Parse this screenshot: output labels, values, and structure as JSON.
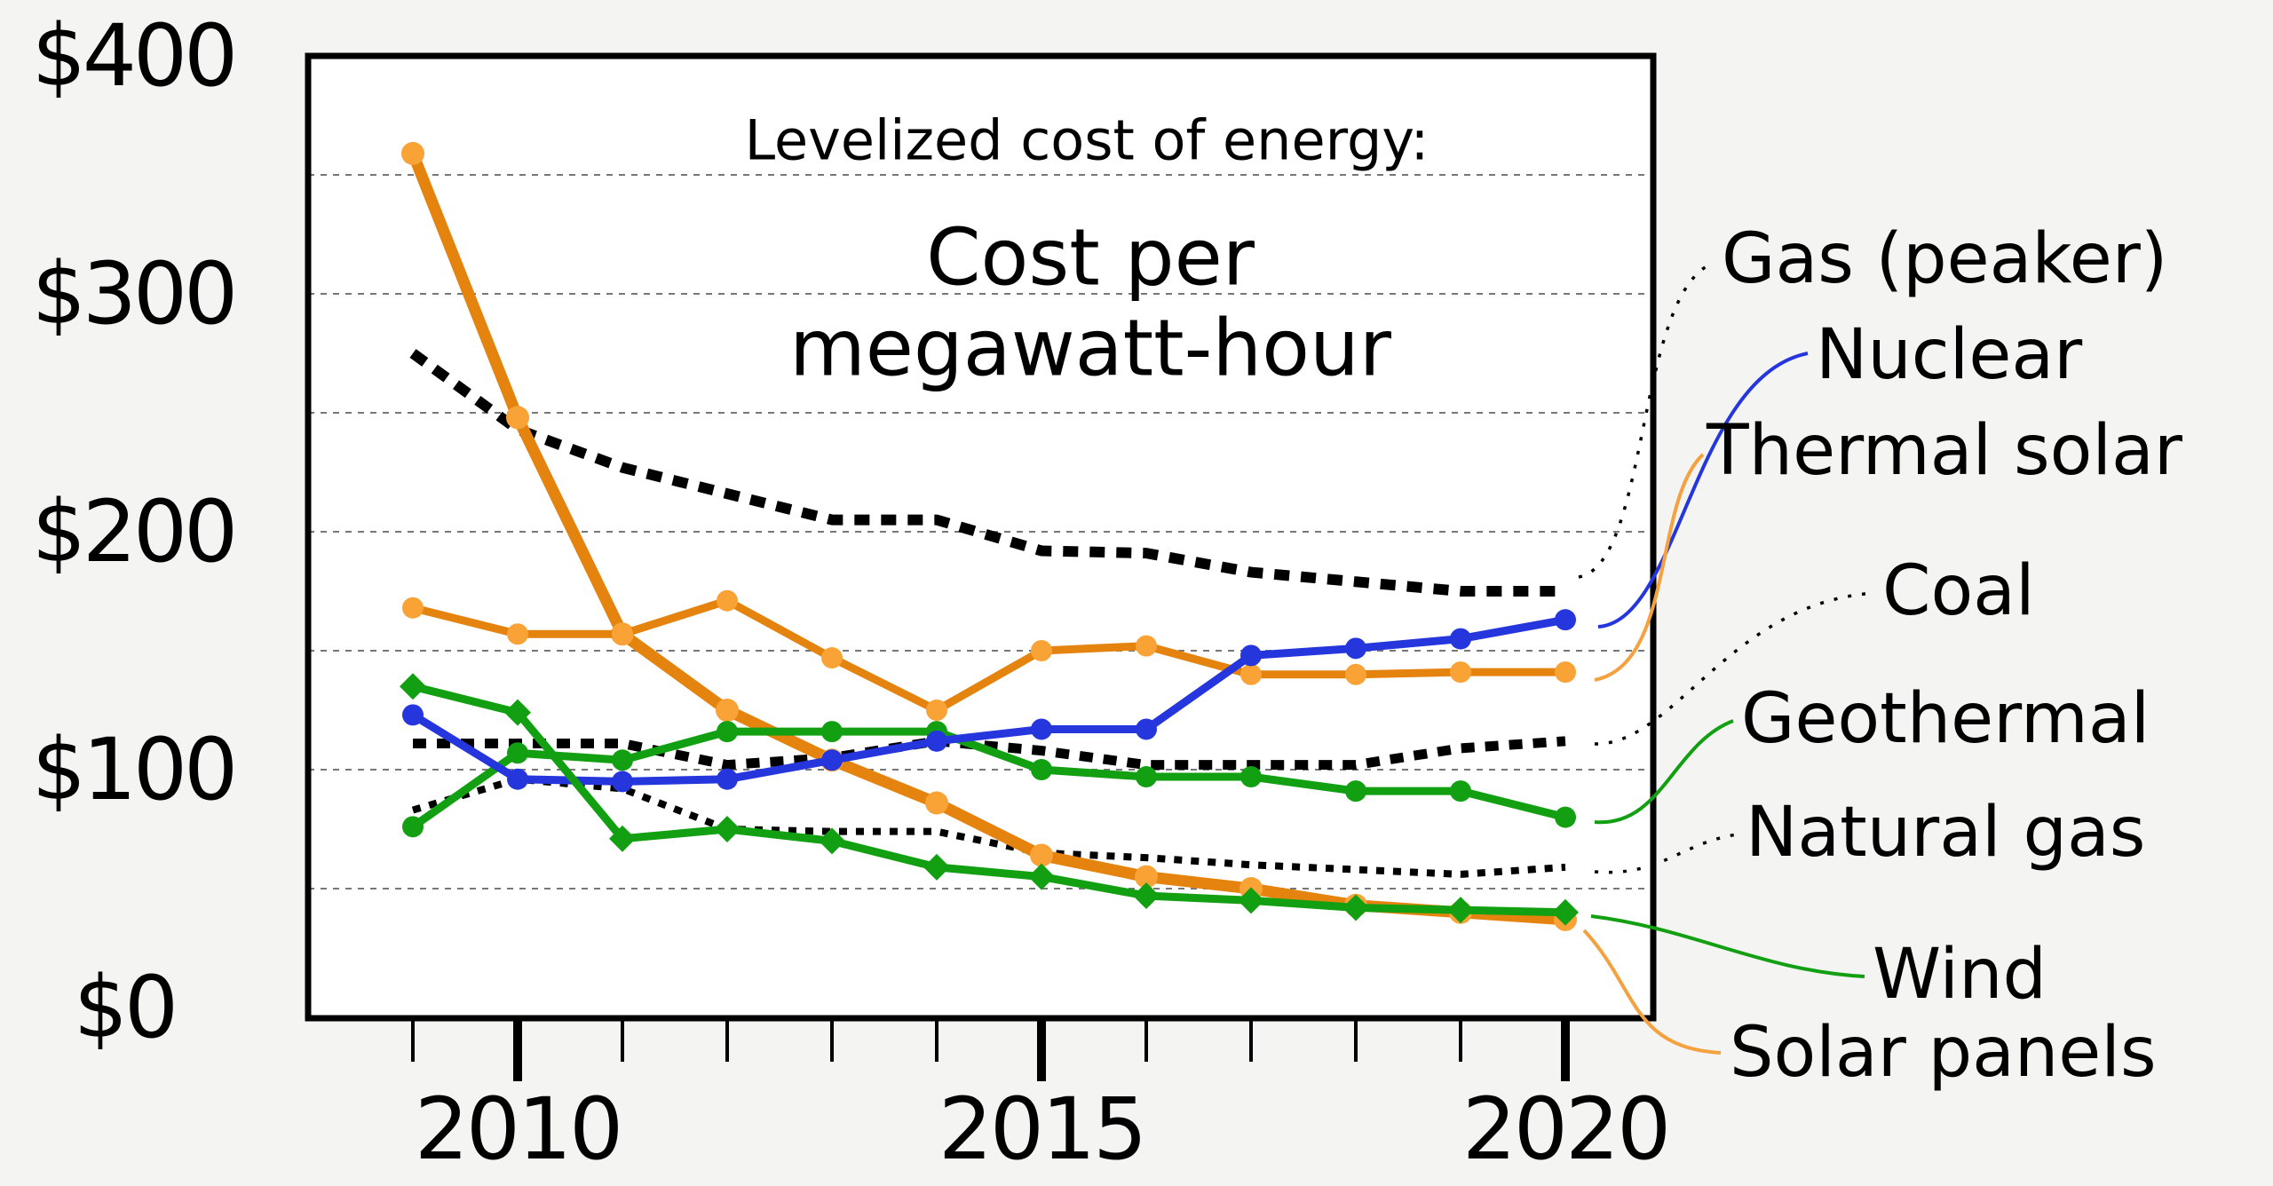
{
  "title": {
    "line1": "Levelized cost of energy:",
    "line2": "Cost per",
    "line3": "megawatt-hour"
  },
  "axes": {
    "y_tick_labels": [
      "$400",
      "$300",
      "$200",
      "$100",
      "$0"
    ],
    "y_tick_values": [
      400,
      300,
      200,
      100,
      0
    ],
    "x_tick_labels": [
      "2010",
      "2015",
      "2020"
    ],
    "x_major_years": [
      2010,
      2015,
      2020
    ]
  },
  "chart_data": {
    "type": "line",
    "x": [
      2009,
      2010,
      2011,
      2012,
      2013,
      2014,
      2015,
      2016,
      2017,
      2018,
      2019,
      2020
    ],
    "xlabel": "",
    "ylabel": "Cost per megawatt-hour ($)",
    "ylim": [
      0,
      400
    ],
    "grid": "dotted horizontal every $50",
    "legend_position": "right",
    "series": [
      {
        "key": "gas_peaker",
        "name": "Gas (peaker)",
        "color": "#000000",
        "line": "dashed-large",
        "marker": "none",
        "values": [
          275,
          243,
          227,
          216,
          205,
          205,
          192,
          191,
          183,
          179,
          175,
          175
        ]
      },
      {
        "key": "coal",
        "name": "Coal",
        "color": "#000000",
        "line": "dashed-medium",
        "marker": "none",
        "values": [
          111,
          111,
          111,
          102,
          105,
          112,
          108,
          102,
          102,
          102,
          109,
          112
        ]
      },
      {
        "key": "natural_gas",
        "name": "Natural gas",
        "color": "#000000",
        "line": "dashed-small",
        "marker": "none",
        "values": [
          83,
          96,
          92,
          75,
          74,
          74,
          65,
          63,
          60,
          58,
          56,
          59
        ]
      },
      {
        "key": "solar_pv",
        "name": "Solar panels",
        "color": "#e5830f",
        "marker_color": "#f9a235",
        "line": "solid-thick",
        "marker": "circle",
        "values": [
          359,
          248,
          157,
          125,
          104,
          86,
          64,
          55,
          50,
          43,
          40,
          37
        ]
      },
      {
        "key": "thermal_solar",
        "name": "Thermal solar",
        "color": "#e5830f",
        "marker_color": "#f9a235",
        "line": "solid",
        "marker": "circle",
        "values": [
          168,
          157,
          157,
          171,
          147,
          125,
          150,
          152,
          140,
          140,
          141,
          141
        ]
      },
      {
        "key": "geothermal",
        "name": "Geothermal",
        "color": "#12a012",
        "marker_color": "#12a012",
        "line": "solid",
        "marker": "circle",
        "values": [
          76,
          107,
          104,
          116,
          116,
          116,
          100,
          97,
          97,
          91,
          91,
          80
        ]
      },
      {
        "key": "nuclear",
        "name": "Nuclear",
        "color": "#2636dd",
        "marker_color": "#2636dd",
        "line": "solid",
        "marker": "circle",
        "values": [
          123,
          96,
          95,
          96,
          104,
          112,
          117,
          117,
          148,
          151,
          155,
          163
        ]
      },
      {
        "key": "wind",
        "name": "Wind",
        "color": "#12a012",
        "marker_color": "#12a012",
        "line": "solid",
        "marker": "diamond",
        "values": [
          135,
          124,
          71,
          75,
          70,
          59,
          55,
          47,
          45,
          42,
          41,
          40
        ]
      }
    ]
  },
  "legend": {
    "items": [
      {
        "key": "gas_peaker",
        "label": "Gas (peaker)",
        "color": "#000000",
        "leader": "dotted-black"
      },
      {
        "key": "nuclear",
        "label": "Nuclear",
        "color": "#2636dd",
        "leader": "solid-blue"
      },
      {
        "key": "thermal_solar",
        "label": "Thermal solar",
        "color": "#e5830f",
        "leader": "solid-light-orange"
      },
      {
        "key": "coal",
        "label": "Coal",
        "color": "#000000",
        "leader": "dotted-black"
      },
      {
        "key": "geothermal",
        "label": "Geothermal",
        "color": "#12a012",
        "leader": "solid-green"
      },
      {
        "key": "natural_gas",
        "label": "Natural gas",
        "color": "#000000",
        "leader": "dotted-black"
      },
      {
        "key": "wind",
        "label": "Wind",
        "color": "#12a012",
        "leader": "solid-green"
      },
      {
        "key": "solar_pv",
        "label": "Solar panels",
        "color": "#e5830f",
        "leader": "solid-light-orange"
      }
    ]
  },
  "colors": {
    "background": "#f4f4f2",
    "plot_background": "#ffffff",
    "axis": "#000000",
    "gridline": "#777777",
    "leader_light_orange": "#f5a140"
  }
}
